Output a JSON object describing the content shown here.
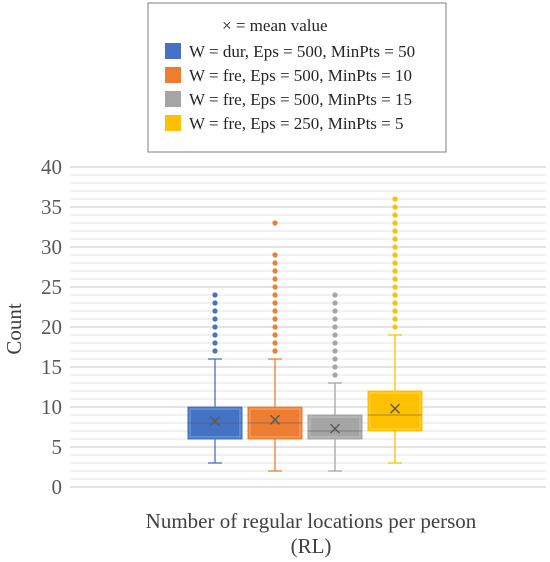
{
  "chart_data": {
    "type": "box",
    "legend_note": "× = mean value",
    "ylabel": "Count",
    "xlabel_line1": "Number of regular locations per person",
    "xlabel_line2": "(RL)",
    "ylim": [
      0,
      40
    ],
    "yticks": [
      0,
      5,
      10,
      15,
      20,
      25,
      30,
      35,
      40
    ],
    "minor_grid_step": 1,
    "legend_position": "top-center",
    "series": [
      {
        "name": "W = dur, Eps = 500, MinPts = 50",
        "color": "#4472C4",
        "whisker_low": 3,
        "q1": 6,
        "median": 8,
        "q3": 10,
        "whisker_high": 16,
        "mean": 8.2,
        "outliers": [
          17,
          18,
          19,
          20,
          21,
          22,
          23,
          24
        ]
      },
      {
        "name": "W = fre, Eps = 500, MinPts = 10",
        "color": "#ED7D31",
        "whisker_low": 2,
        "q1": 6,
        "median": 8,
        "q3": 10,
        "whisker_high": 16,
        "mean": 8.4,
        "outliers": [
          17,
          18,
          19,
          20,
          21,
          22,
          23,
          24,
          25,
          26,
          27,
          28,
          29,
          33
        ]
      },
      {
        "name": "W = fre, Eps = 500, MinPts = 15",
        "color": "#A5A5A5",
        "whisker_low": 2,
        "q1": 6,
        "median": 7,
        "q3": 9,
        "whisker_high": 13,
        "mean": 7.3,
        "outliers": [
          14,
          15,
          16,
          17,
          18,
          19,
          20,
          21,
          22,
          23,
          24
        ]
      },
      {
        "name": "W = fre, Eps = 250, MinPts = 5",
        "color": "#FFC000",
        "whisker_low": 3,
        "q1": 7,
        "median": 9,
        "q3": 12,
        "whisker_high": 19,
        "mean": 9.8,
        "outliers": [
          20,
          21,
          22,
          23,
          24,
          25,
          26,
          27,
          28,
          29,
          30,
          31,
          32,
          33,
          34,
          35,
          36
        ]
      }
    ]
  }
}
